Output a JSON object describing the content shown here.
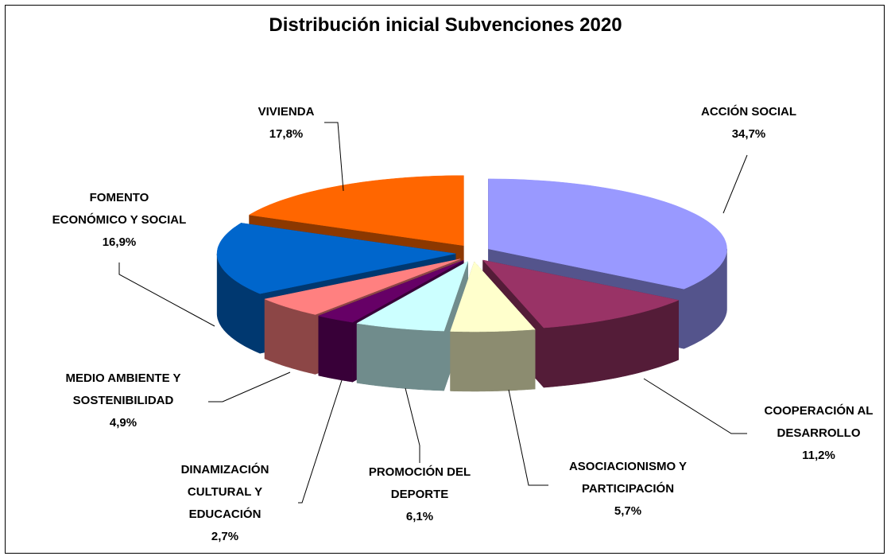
{
  "chart_data": {
    "type": "pie",
    "title": "Distribución inicial Subvenciones 2020",
    "categories": [
      "ACCIÓN SOCIAL",
      "COOPERACIÓN AL DESARROLLO",
      "ASOCIACIONISMO Y PARTICIPACIÓN",
      "PROMOCIÓN DEL DEPORTE",
      "DINAMIZACIÓN CULTURAL Y EDUCACIÓN",
      "MEDIO AMBIENTE Y SOSTENIBILIDAD",
      "FOMENTO ECONÓMICO Y SOCIAL",
      "VIVIENDA"
    ],
    "values": [
      34.7,
      11.2,
      5.7,
      6.1,
      2.7,
      4.9,
      16.9,
      17.8
    ],
    "value_labels": [
      "34,7%",
      "11,2%",
      "5,7%",
      "6,1%",
      "2,7%",
      "4,9%",
      "16,9%",
      "17,8%"
    ],
    "colors": [
      "#9999ff",
      "#993366",
      "#ffffcc",
      "#ccffff",
      "#660066",
      "#ff8080",
      "#0066cc",
      "#ff6600"
    ]
  }
}
